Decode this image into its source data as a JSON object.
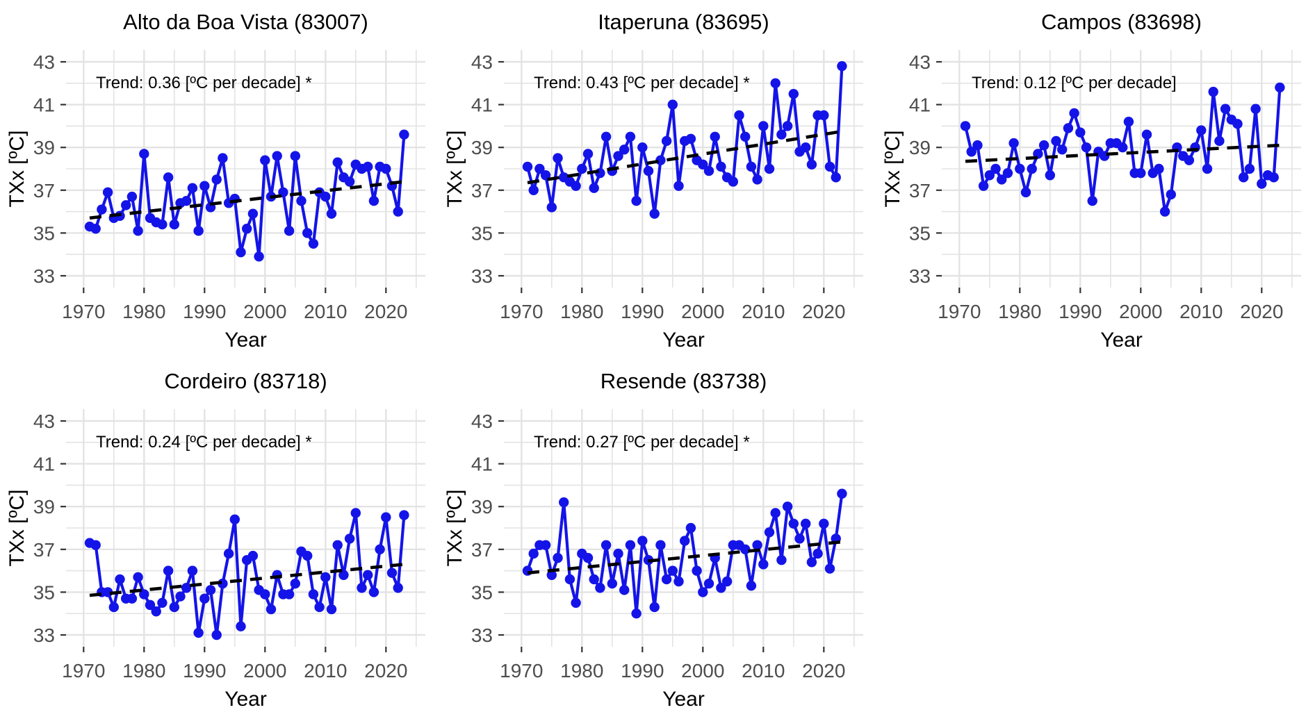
{
  "page": {
    "background": "#ffffff"
  },
  "style": {
    "line_color": "#1414e8",
    "point_color": "#1414e8",
    "trend_color": "#000000",
    "grid_color": "#e3e3e3",
    "tick_mark_color": "#333333",
    "tick_label_color": "#4d4d4d",
    "title_color": "#000000",
    "annotation_color": "#000000"
  },
  "axes": {
    "xlabel": "Year",
    "ylabel": "TXx [ºC]",
    "x_ticks": [
      1970,
      1980,
      1990,
      2000,
      2010,
      2020
    ],
    "x_minor": [
      1975,
      1985,
      1995,
      2005,
      2015,
      2025
    ],
    "y_ticks": [
      33,
      35,
      37,
      39,
      41,
      43
    ],
    "y_minor": [
      34,
      36,
      38,
      40,
      42
    ],
    "xlim": [
      1967.1,
      2026.5
    ],
    "ylim": [
      32.45,
      43.55
    ],
    "grid": true,
    "legend": "none"
  },
  "years": [
    1971,
    1972,
    1973,
    1974,
    1975,
    1976,
    1977,
    1978,
    1979,
    1980,
    1981,
    1982,
    1983,
    1984,
    1985,
    1986,
    1987,
    1988,
    1989,
    1990,
    1991,
    1992,
    1993,
    1994,
    1995,
    1996,
    1997,
    1998,
    1999,
    2000,
    2001,
    2002,
    2003,
    2004,
    2005,
    2006,
    2007,
    2008,
    2009,
    2010,
    2011,
    2012,
    2013,
    2014,
    2015,
    2016,
    2017,
    2018,
    2019,
    2020,
    2021,
    2022,
    2023
  ],
  "chart_data": [
    {
      "type": "line",
      "title": "Alto da Boa Vista (83007)",
      "trend_label": "Trend: 0.36 [ºC per decade] *",
      "trend_per_decade": 0.36,
      "trend_significant": true,
      "trend_start_value": 35.7,
      "trend_end_value": 37.4,
      "values": [
        35.3,
        35.2,
        36.1,
        36.9,
        35.7,
        35.8,
        36.3,
        36.7,
        35.1,
        38.7,
        35.7,
        35.5,
        35.4,
        37.6,
        35.4,
        36.4,
        36.5,
        37.1,
        35.1,
        37.2,
        36.2,
        37.5,
        38.5,
        36.4,
        36.6,
        34.1,
        35.2,
        35.9,
        33.9,
        38.4,
        36.7,
        38.6,
        36.9,
        35.1,
        38.6,
        36.5,
        35.0,
        34.5,
        36.9,
        36.7,
        35.9,
        38.3,
        37.6,
        37.4,
        38.2,
        38.0,
        38.1,
        36.5,
        38.1,
        38.0,
        37.2,
        36.0,
        39.6
      ]
    },
    {
      "type": "line",
      "title": "Itaperuna (83695)",
      "trend_label": "Trend: 0.43 [ºC per decade] *",
      "trend_per_decade": 0.43,
      "trend_significant": true,
      "trend_start_value": 37.35,
      "trend_end_value": 39.75,
      "values": [
        38.1,
        37.0,
        38.0,
        37.7,
        36.2,
        38.5,
        37.6,
        37.4,
        37.2,
        38.0,
        38.7,
        37.1,
        37.8,
        39.5,
        37.9,
        38.6,
        38.9,
        39.5,
        36.5,
        39.0,
        37.9,
        35.9,
        38.4,
        39.3,
        41.0,
        37.2,
        39.3,
        39.4,
        38.4,
        38.2,
        37.9,
        39.5,
        38.1,
        37.6,
        37.4,
        40.5,
        39.5,
        38.1,
        37.5,
        40.0,
        38.0,
        42.0,
        39.6,
        40.0,
        41.5,
        38.8,
        39.0,
        38.2,
        40.5,
        40.5,
        38.1,
        37.6,
        42.8
      ]
    },
    {
      "type": "line",
      "title": "Campos (83698)",
      "trend_label": "Trend: 0.12 [ºC per decade]",
      "trend_per_decade": 0.12,
      "trend_significant": false,
      "trend_start_value": 38.35,
      "trend_end_value": 39.1,
      "values": [
        40.0,
        38.8,
        39.1,
        37.2,
        37.7,
        38.0,
        37.5,
        37.8,
        39.2,
        38.0,
        36.9,
        38.0,
        38.7,
        39.1,
        37.7,
        39.3,
        38.9,
        39.9,
        40.6,
        39.7,
        39.0,
        36.5,
        38.8,
        38.6,
        39.2,
        39.2,
        39.0,
        40.2,
        37.8,
        37.8,
        39.6,
        37.8,
        38.0,
        36.0,
        36.8,
        39.0,
        38.6,
        38.4,
        39.0,
        39.8,
        38.0,
        41.6,
        39.3,
        40.8,
        40.3,
        40.1,
        37.6,
        38.0,
        40.8,
        37.3,
        37.7,
        37.6,
        41.8
      ]
    },
    {
      "type": "line",
      "title": "Cordeiro (83718)",
      "trend_label": "Trend: 0.24 [ºC per decade] *",
      "trend_per_decade": 0.24,
      "trend_significant": true,
      "trend_start_value": 34.85,
      "trend_end_value": 36.3,
      "values": [
        37.3,
        37.2,
        35.0,
        35.0,
        34.3,
        35.6,
        34.7,
        34.7,
        35.7,
        34.9,
        34.4,
        34.1,
        34.5,
        36.0,
        34.3,
        34.8,
        35.2,
        36.0,
        33.1,
        34.7,
        35.1,
        33.0,
        35.4,
        36.8,
        38.4,
        33.4,
        36.5,
        36.7,
        35.1,
        34.9,
        34.2,
        35.8,
        34.9,
        34.9,
        35.4,
        36.9,
        36.7,
        34.9,
        34.3,
        35.7,
        34.2,
        37.2,
        35.8,
        37.5,
        38.7,
        35.2,
        35.8,
        35.0,
        37.0,
        38.5,
        35.9,
        35.2,
        38.6
      ]
    },
    {
      "type": "line",
      "title": "Resende (83738)",
      "trend_label": "Trend: 0.27 [ºC per decade] *",
      "trend_per_decade": 0.27,
      "trend_significant": true,
      "trend_start_value": 35.9,
      "trend_end_value": 37.35,
      "values": [
        36.0,
        36.8,
        37.2,
        37.2,
        35.8,
        36.6,
        39.2,
        35.6,
        34.5,
        36.8,
        36.6,
        35.6,
        35.2,
        37.2,
        35.4,
        36.8,
        35.1,
        37.2,
        34.0,
        37.4,
        36.5,
        34.3,
        37.2,
        35.6,
        36.0,
        35.5,
        37.4,
        38.0,
        36.0,
        35.0,
        35.4,
        36.6,
        35.2,
        35.5,
        37.2,
        37.2,
        37.0,
        35.3,
        37.2,
        36.3,
        37.8,
        38.7,
        36.5,
        39.0,
        38.2,
        37.5,
        38.2,
        36.4,
        36.8,
        38.2,
        36.1,
        37.5,
        39.6
      ]
    }
  ]
}
